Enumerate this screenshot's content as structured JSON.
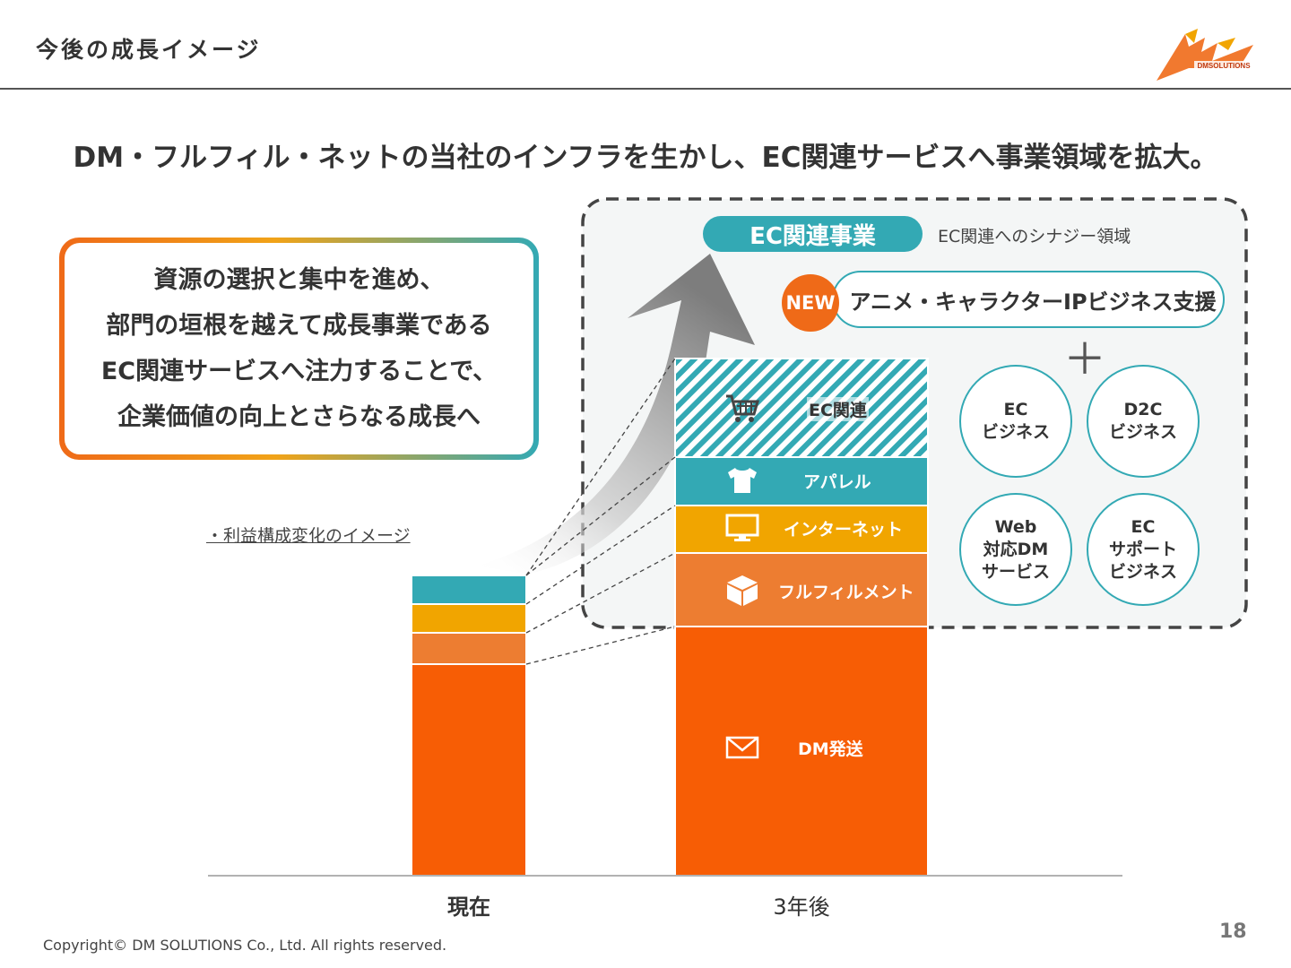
{
  "header": {
    "title": "今後の成長イメージ",
    "logo_text": "DMSOLUTIONS"
  },
  "headline": "DM・フルフィル・ネットの当社のインフラを生かし、EC関連サービスへ事業領域を拡大。",
  "message_box": {
    "lines": [
      "資源の選択と集中を進め、",
      "部門の垣根を越えて成長事業である",
      "EC関連サービスへ注力することで、",
      "企業価値の向上とさらなる成長へ"
    ]
  },
  "chart_note": "・利益構成変化のイメージ",
  "chart_data": {
    "type": "bar",
    "stacked": true,
    "categories": [
      "現在",
      "3年後"
    ],
    "series": [
      {
        "name": "DM発送",
        "color": "#f75d05",
        "values": [
          236,
          278
        ],
        "icon": "envelope-icon"
      },
      {
        "name": "フルフィルメント",
        "color": "#ed7d31",
        "values": [
          35,
          82
        ],
        "icon": "package-icon"
      },
      {
        "name": "インターネット",
        "color": "#f1a500",
        "values": [
          32,
          53
        ],
        "icon": "monitor-icon"
      },
      {
        "name": "アパレル",
        "color": "#33a9b4",
        "values": [
          32,
          54
        ],
        "icon": "tshirt-icon"
      },
      {
        "name": "EC関連",
        "color": "#33a9b4",
        "pattern": "diagonal-stripes",
        "values": [
          0,
          110
        ],
        "icon": "cart-icon"
      }
    ],
    "ylim": [
      0,
      580
    ]
  },
  "ec_panel": {
    "pill_label": "EC関連事業",
    "synergy_label": "EC関連へのシナジー領域",
    "new_badge": "NEW",
    "ip_label": "アニメ・キャラクターIPビジネス支援",
    "plus": "＋",
    "circles": [
      {
        "lines": [
          "EC",
          "ビジネス"
        ]
      },
      {
        "lines": [
          "D2C",
          "ビジネス"
        ]
      },
      {
        "lines": [
          "Web",
          "対応DM",
          "サービス"
        ]
      },
      {
        "lines": [
          "EC",
          "サポート",
          "ビジネス"
        ]
      }
    ]
  },
  "footer": {
    "copyright": "Copyright© DM SOLUTIONS Co., Ltd. All rights reserved.",
    "page_number": "18"
  },
  "colors": {
    "teal": "#33a9b4",
    "orange": "#ef6a18",
    "dm_orange": "#f75d05",
    "yellow": "#f1a500"
  }
}
